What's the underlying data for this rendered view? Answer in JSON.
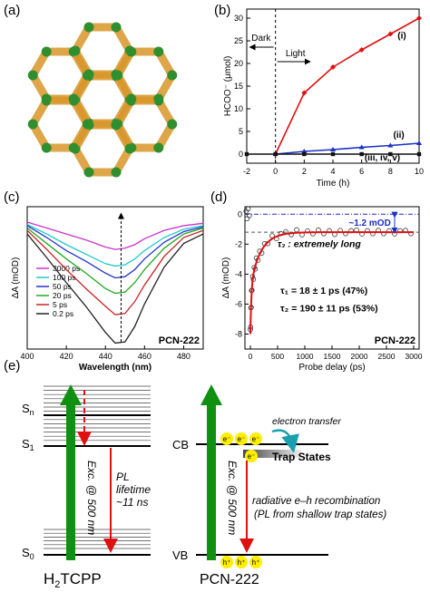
{
  "panels": {
    "a": {
      "label": "(a)"
    },
    "b": {
      "label": "(b)"
    },
    "c": {
      "label": "(c)"
    },
    "d": {
      "label": "(d)"
    },
    "e": {
      "label": "(e)"
    }
  },
  "colors": {
    "mof_framework": "#d9962a",
    "mof_linker": "#2f8f2f",
    "red": "#e01010",
    "blue": "#1a2fc8",
    "green": "#109010"
  },
  "chart_data": [
    {
      "panel": "b",
      "type": "line",
      "xlabel": "Time (h)",
      "ylabel": "HCOO⁻ (μmol)",
      "xlim": [
        -2,
        10
      ],
      "ylim": [
        -2,
        32
      ],
      "xticks": [
        -2,
        0,
        2,
        4,
        6,
        8,
        10
      ],
      "yticks": [
        0,
        5,
        10,
        15,
        20,
        25,
        30
      ],
      "annotations": {
        "dark": "Dark",
        "light": "Light"
      },
      "series": [
        {
          "name": "(i)",
          "color": "#e01010",
          "marker": "diamond",
          "x": [
            0,
            2,
            4,
            6,
            8,
            10
          ],
          "y": [
            0,
            13.5,
            19.2,
            23.0,
            26.5,
            30.0
          ]
        },
        {
          "name": "(ii)",
          "color": "#1a2fc8",
          "marker": "triangle",
          "x": [
            0,
            2,
            4,
            6,
            8,
            10
          ],
          "y": [
            0,
            0.6,
            1.0,
            1.5,
            1.9,
            2.4
          ]
        },
        {
          "name": "(iii, iv, v)",
          "color": "#111111",
          "marker": "square",
          "x": [
            -2,
            0,
            2,
            4,
            6,
            8,
            10
          ],
          "y": [
            0,
            0,
            0,
            0,
            0,
            0,
            0
          ]
        }
      ]
    },
    {
      "panel": "c",
      "type": "line",
      "xlabel": "Wavelength (nm)",
      "ylabel": "ΔA (mOD)",
      "xlim": [
        400,
        490
      ],
      "xticks": [
        400,
        420,
        440,
        460,
        480
      ],
      "title": "PCN-222",
      "ylim": [
        -11,
        1
      ],
      "series": [
        {
          "name": "3000 ps",
          "color": "#cc33cc",
          "x": [
            400,
            410,
            420,
            430,
            440,
            445,
            450,
            455,
            460,
            470,
            480,
            490
          ],
          "y": [
            -0.3,
            -0.8,
            -1.3,
            -1.8,
            -2.4,
            -2.6,
            -2.5,
            -2.2,
            -1.7,
            -1.0,
            -0.6,
            -0.4
          ]
        },
        {
          "name": "100 ps",
          "color": "#22c8c8",
          "x": [
            400,
            410,
            420,
            430,
            440,
            445,
            450,
            455,
            460,
            470,
            480,
            490
          ],
          "y": [
            -0.5,
            -1.3,
            -2.2,
            -3.0,
            -3.8,
            -4.0,
            -3.9,
            -3.4,
            -2.7,
            -1.6,
            -0.9,
            -0.6
          ]
        },
        {
          "name": "50 ps",
          "color": "#2233cc",
          "x": [
            400,
            410,
            420,
            430,
            440,
            445,
            450,
            455,
            460,
            470,
            480,
            490
          ],
          "y": [
            -0.6,
            -1.6,
            -2.7,
            -3.6,
            -4.6,
            -5.0,
            -4.9,
            -4.3,
            -3.4,
            -2.0,
            -1.1,
            -0.7
          ]
        },
        {
          "name": "20 ps",
          "color": "#22aa22",
          "x": [
            400,
            410,
            420,
            430,
            440,
            445,
            450,
            455,
            460,
            470,
            480,
            490
          ],
          "y": [
            -0.8,
            -2.1,
            -3.4,
            -4.6,
            -5.9,
            -6.3,
            -6.2,
            -5.4,
            -4.3,
            -2.5,
            -1.3,
            -0.8
          ]
        },
        {
          "name": "5 ps",
          "color": "#cc2222",
          "x": [
            400,
            410,
            420,
            430,
            440,
            445,
            450,
            455,
            460,
            470,
            480,
            490
          ],
          "y": [
            -1.0,
            -2.6,
            -4.3,
            -5.9,
            -7.4,
            -8.1,
            -8.0,
            -7.0,
            -5.6,
            -3.2,
            -1.6,
            -1.0
          ]
        },
        {
          "name": "0.2 ps",
          "color": "#222222",
          "x": [
            400,
            410,
            420,
            430,
            440,
            445,
            450,
            455,
            460,
            470,
            480,
            490
          ],
          "y": [
            -1.3,
            -3.3,
            -5.4,
            -7.4,
            -9.6,
            -10.5,
            -10.4,
            -9.1,
            -7.2,
            -4.1,
            -2.1,
            -1.3
          ]
        }
      ]
    },
    {
      "panel": "d",
      "type": "scatter",
      "xlabel": "Probe delay (ps)",
      "ylabel": "ΔA (mOD)",
      "xlim": [
        -100,
        3100
      ],
      "xticks": [
        0,
        500,
        1000,
        1500,
        2000,
        2500,
        3000
      ],
      "ylim": [
        -9,
        0.5
      ],
      "yticks": [
        0,
        -2,
        -4,
        -6,
        -8
      ],
      "title": "PCN-222",
      "annotations": {
        "offset": "~1.2 mOD",
        "tau3": "τ₃ : extremely long",
        "tau1": "τ₁ = 18 ± 1 ps (47%)",
        "tau2": "τ₂ = 190 ± 11 ps (53%)"
      },
      "fit": {
        "a1": -3.2,
        "tau1": 18,
        "a2": -3.6,
        "tau2": 190,
        "offset": -1.2
      }
    }
  ],
  "diagram": {
    "left": {
      "levels": {
        "sn": "S",
        "sn_sub": "n",
        "s1": "S",
        "s1_sub": "1",
        "s0": "S",
        "s0_sub": "0"
      },
      "excitation": "Exc. @ 500 nm",
      "pl_line1": "PL",
      "pl_line2": "lifetime",
      "pl_line3": "~11 ns",
      "name_main": "H",
      "name_sub": "2",
      "name_rest": "TCPP"
    },
    "right": {
      "cb": "CB",
      "vb": "VB",
      "electron": "e⁻",
      "hole": "h⁺",
      "electron_transfer": "electron transfer",
      "trap_states": "Trap States",
      "excitation": "Exc. @ 500 nm",
      "recomb_line1": "radiative e–h recombination",
      "recomb_line2": "(PL from shallow trap states)",
      "name": "PCN-222"
    }
  }
}
